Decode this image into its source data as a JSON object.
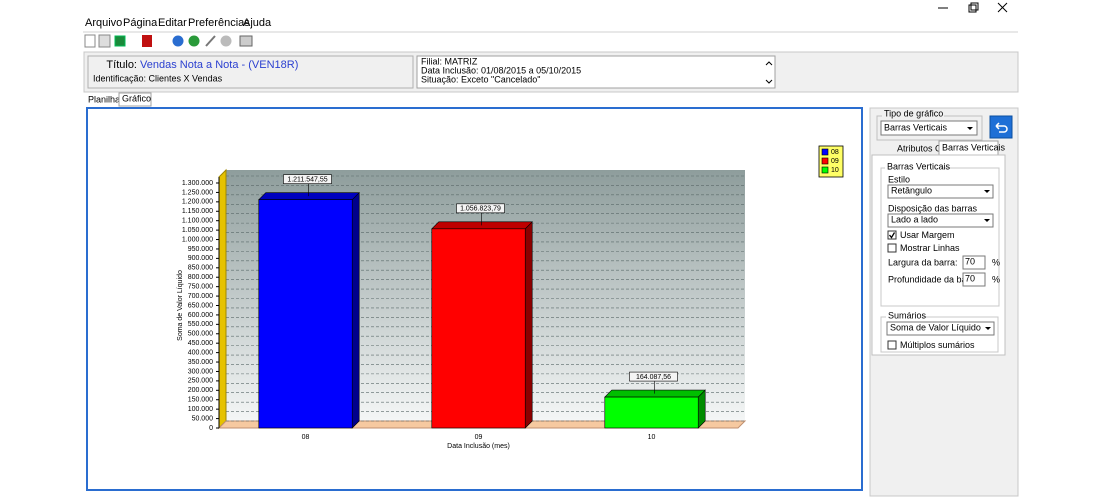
{
  "menu": [
    "Arquivo",
    "Página",
    "Editar",
    "Preferências",
    "Ajuda"
  ],
  "header": {
    "title_label": "Título:",
    "title": "Vendas Nota a Nota - (VEN18R)",
    "identification": "Identificação: Clientes X Vendas",
    "filters": [
      "Filial: MATRIZ",
      "Data Inclusão: 01/08/2015 a 05/10/2015",
      "Situação: Exceto \"Cancelado\""
    ]
  },
  "tabs": [
    "Planilha",
    "Gráfico"
  ],
  "chart_data": {
    "type": "bar",
    "x_label": "Data Inclusão (mes)",
    "y_label": "Soma de Valor Líquido",
    "categories": [
      "08",
      "09",
      "10"
    ],
    "values": [
      1211547.55,
      1056823.79,
      164087.56
    ],
    "value_labels": [
      "1.211.547,55",
      "1.056.823,79",
      "164.087,56"
    ],
    "colors": [
      "#0000ff",
      "#ff0000",
      "#00ff00"
    ],
    "ylim": [
      0,
      1300000
    ],
    "yticks": [
      0,
      {
        "value": 50000,
        "label": "50.000"
      },
      {
        "value": 100000,
        "label": "100.000"
      },
      {
        "value": 150000,
        "label": "150.000"
      },
      {
        "value": 200000,
        "label": "200.000"
      },
      {
        "value": 250000,
        "label": "250.000"
      },
      {
        "value": 300000,
        "label": "300.000"
      },
      {
        "value": 350000,
        "label": "350.000"
      },
      {
        "value": 400000,
        "label": "400.000"
      },
      {
        "value": 450000,
        "label": "450.000"
      },
      {
        "value": 500000,
        "label": "500.000"
      },
      {
        "value": 550000,
        "label": "550.000"
      },
      {
        "value": 600000,
        "label": "600.000"
      },
      {
        "value": 650000,
        "label": "650.000"
      },
      {
        "value": 700000,
        "label": "700.000"
      },
      {
        "value": 750000,
        "label": "750.000"
      },
      {
        "value": 800000,
        "label": "800.000"
      },
      {
        "value": 850000,
        "label": "850.000"
      },
      {
        "value": 900000,
        "label": "900.000"
      },
      {
        "value": 950000,
        "label": "950.000"
      },
      {
        "value": 1000000,
        "label": "1.000.000"
      },
      {
        "value": 1050000,
        "label": "1.050.000"
      },
      {
        "value": 1100000,
        "label": "1.100.000"
      },
      {
        "value": 1150000,
        "label": "1.150.000"
      },
      {
        "value": 1200000,
        "label": "1.200.000"
      },
      {
        "value": 1250000,
        "label": "1.250.000"
      },
      {
        "value": 1300000,
        "label": "1.300.000"
      }
    ],
    "grid": true,
    "legend": "top-right"
  },
  "side_panel": {
    "chart_type_label": "Tipo de gráfico",
    "chart_type": "Barras Verticais",
    "tabs": [
      "Atributos Gerais",
      "Barras Verticais"
    ],
    "group": "Barras Verticais",
    "style_label": "Estilo",
    "style": "Retângulo",
    "layout_label": "Disposição das barras",
    "layout": "Lado a lado",
    "checkboxes": [
      {
        "label": "Usar Margem",
        "checked": true
      },
      {
        "label": "Mostrar Linhas",
        "checked": false
      }
    ],
    "bar_width_label": "Largura da barra:",
    "bar_width": 70,
    "bar_depth_label": "Profundidade da barra:",
    "bar_depth": 70,
    "unit": "%",
    "summaries_label": "Sumários",
    "summary": "Soma de Valor Líquido",
    "multiple_summaries": {
      "label": "Múltiplos sumários",
      "checked": false
    }
  }
}
